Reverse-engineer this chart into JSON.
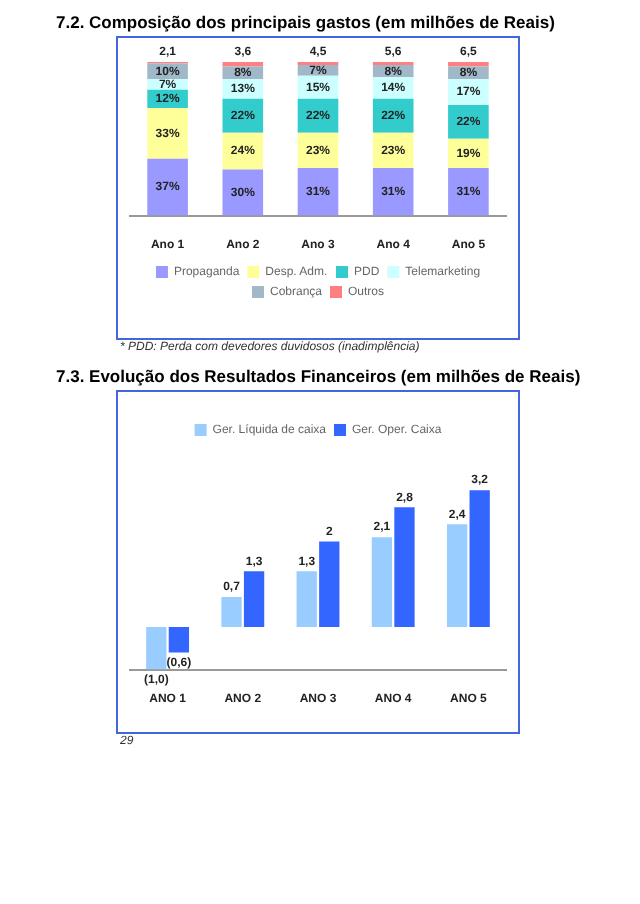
{
  "chart_data": [
    {
      "type": "bar",
      "title": "7.2. Composição dos principais gastos (em milhões de Reais)",
      "categories": [
        "Ano 1",
        "Ano 2",
        "Ano 3",
        "Ano 4",
        "Ano 5"
      ],
      "stacked": true,
      "tick_labels": "x",
      "grid": false,
      "legend": "bottom",
      "series": [
        {
          "name": "Propaganda",
          "color": "#9999ff",
          "values": [
            37,
            30,
            31,
            31,
            31
          ],
          "value_labels": [
            "37%",
            "30%",
            "31%",
            "31%",
            "31%"
          ]
        },
        {
          "name": "Desp. Adm.",
          "color": "#ffff99",
          "values": [
            33,
            24,
            23,
            23,
            19
          ],
          "value_labels": [
            "33%",
            "24%",
            "23%",
            "23%",
            "19%"
          ]
        },
        {
          "name": "PDD",
          "color": "#33cccc",
          "values": [
            12,
            22,
            22,
            22,
            22
          ],
          "value_labels": [
            "12%",
            "22%",
            "22%",
            "22%",
            "22%"
          ]
        },
        {
          "name": "Telemarketing",
          "color": "#ccffff",
          "values": [
            7,
            13,
            15,
            14,
            17
          ],
          "value_labels": [
            "7%",
            "13%",
            "15%",
            "14%",
            "17%"
          ]
        },
        {
          "name": "Cobrança",
          "color": "#a0b8c8",
          "values": [
            10,
            8,
            7,
            8,
            8
          ],
          "value_labels": [
            "10%",
            "8%",
            "7%",
            "8%",
            "8%"
          ]
        },
        {
          "name": "Outros",
          "color": "#ff8080",
          "values": [
            1,
            3,
            2,
            2,
            3
          ],
          "value_labels": [
            null,
            null,
            null,
            null,
            null
          ]
        }
      ],
      "annotations": [
        {
          "text": "2,1",
          "x": "Ano 1"
        },
        {
          "text": "3,6",
          "x": "Ano 2"
        },
        {
          "text": "4,5",
          "x": "Ano 3"
        },
        {
          "text": "5,6",
          "x": "Ano 4"
        },
        {
          "text": "6,5",
          "x": "Ano 5"
        },
        "* PDD: Perda com devedores duvidosos (inadimplência)"
      ]
    },
    {
      "type": "bar",
      "title": "7.3. Evolução dos Resultados Financeiros (em milhões de Reais)",
      "categories": [
        "ANO 1",
        "ANO 2",
        "ANO 3",
        "ANO 4",
        "ANO 5"
      ],
      "tick_labels": "x",
      "grid": false,
      "legend": "top",
      "series": [
        {
          "name": "Ger. Líquida de caixa",
          "color": "#99ccff",
          "values": [
            -1.0,
            0.7,
            1.3,
            2.1,
            2.4
          ],
          "value_labels": [
            "(1,0)",
            "0,7",
            "1,3",
            "2,1",
            "2,4"
          ]
        },
        {
          "name": "Ger. Oper. Caixa",
          "color": "#3366ff",
          "values": [
            -0.6,
            1.3,
            2,
            2.8,
            3.2
          ],
          "value_labels": [
            "(0,6)",
            "1,3",
            "2",
            "2,8",
            "3,2"
          ]
        }
      ],
      "annotations": [
        "29"
      ]
    }
  ]
}
